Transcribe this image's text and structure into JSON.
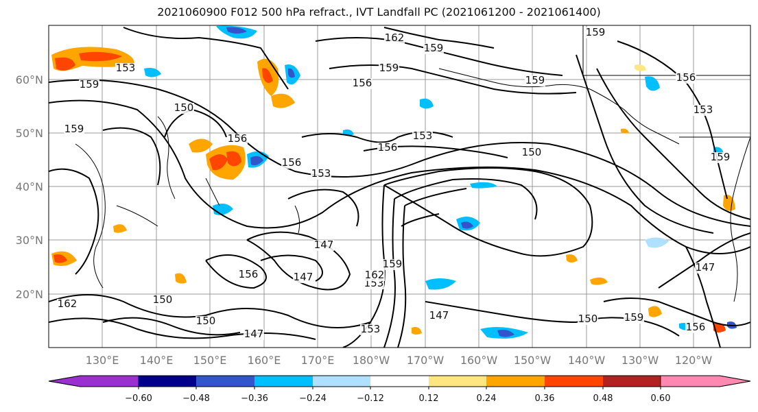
{
  "title": "2021060900 F012 500 hPa refract., IVT Landfall PC (2021061200 - 2021061400)",
  "map": {
    "lat_labels": [
      "60°N",
      "50°N",
      "40°N",
      "30°N",
      "20°N"
    ],
    "lon_labels": [
      "130°E",
      "140°E",
      "150°E",
      "160°E",
      "170°E",
      "180°W",
      "170°W",
      "160°W",
      "150°W",
      "140°W",
      "130°W",
      "120°W"
    ],
    "contour_labels": [
      "162",
      "159",
      "159",
      "153",
      "159",
      "156",
      "159",
      "156",
      "159",
      "153",
      "156",
      "153",
      "159",
      "150",
      "156",
      "153",
      "156",
      "159",
      "150",
      "147",
      "153",
      "159",
      "162",
      "156",
      "147",
      "147",
      "150",
      "150",
      "147",
      "150",
      "153",
      "159",
      "156",
      "147",
      "162"
    ],
    "field": "500 hPa refractivity contours with IVT landfall PC shading",
    "land_color": "#000000",
    "grid_color": "#999999"
  },
  "colorbar": {
    "tick_labels": [
      "−0.60",
      "−0.48",
      "−0.36",
      "−0.24",
      "−0.12",
      "0.12",
      "0.24",
      "0.36",
      "0.48",
      "0.60"
    ],
    "colors": [
      "#9b30d0",
      "#00008b",
      "#3355cc",
      "#00bfff",
      "#b0e0ff",
      "#ffffff",
      "#ffe680",
      "#ffa500",
      "#ff4500",
      "#b22222",
      "#ff88b0"
    ]
  }
}
